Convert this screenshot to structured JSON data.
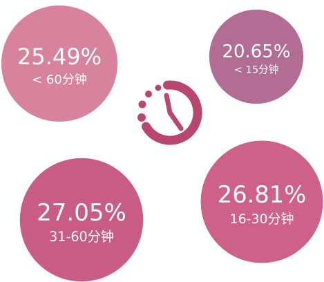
{
  "chart_data": {
    "type": "bubble",
    "categories": [
      "< 60分钟",
      "< 15分钟",
      "31-60分钟",
      "16-30分钟"
    ],
    "values": [
      25.49,
      20.65,
      27.05,
      26.81
    ],
    "value_labels": [
      "25.49%",
      "20.65%",
      "27.05%",
      "26.81%"
    ],
    "colors": [
      "#d8839e",
      "#b16d93",
      "#c95c85",
      "#cd6187"
    ]
  }
}
